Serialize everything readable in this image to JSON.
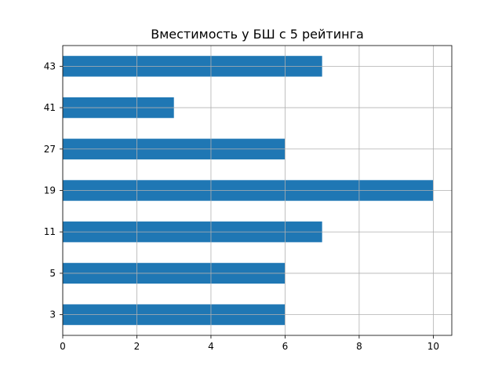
{
  "chart_data": {
    "type": "bar",
    "orientation": "horizontal",
    "title": "Вместимость у БШ с 5 рейтинга",
    "xlabel": "",
    "ylabel": "",
    "categories": [
      "3",
      "5",
      "11",
      "19",
      "27",
      "41",
      "43"
    ],
    "values": [
      6,
      6,
      7,
      10,
      6,
      3,
      7
    ],
    "xlim": [
      0,
      10.5
    ],
    "xticks": [
      "0",
      "2",
      "4",
      "6",
      "8",
      "10"
    ],
    "grid": true,
    "legend": "none",
    "bar_color": "#1f77b4",
    "grid_color": "#b0b0b0"
  }
}
